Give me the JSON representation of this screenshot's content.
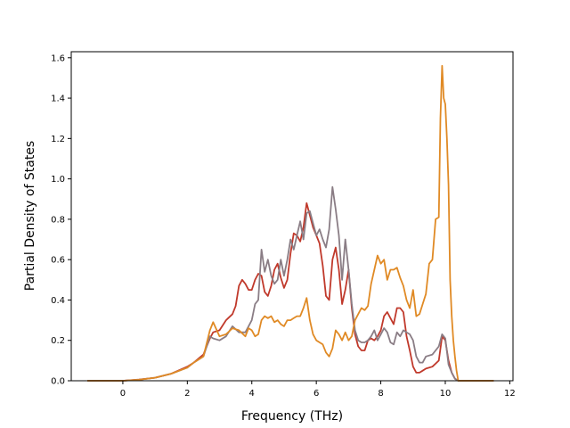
{
  "chart_data": {
    "type": "line",
    "title": "",
    "xlabel": "Frequency (THz)",
    "ylabel": "Partial Density of States",
    "xlim": [
      -1.6,
      12.1
    ],
    "ylim": [
      0.0,
      1.63
    ],
    "xticks": [
      0,
      2,
      4,
      6,
      8,
      10,
      12
    ],
    "yticks": [
      0.0,
      0.2,
      0.4,
      0.6,
      0.8,
      1.0,
      1.2,
      1.4,
      1.6
    ],
    "xtick_labels": [
      "0",
      "2",
      "4",
      "6",
      "8",
      "10",
      "12"
    ],
    "ytick_labels": [
      "0.0",
      "0.2",
      "0.4",
      "0.6",
      "0.8",
      "1.0",
      "1.2",
      "1.4",
      "1.6"
    ],
    "grid": false,
    "legend": "none",
    "series": [
      {
        "color": "#c0392b",
        "points": [
          [
            -1.1,
            0
          ],
          [
            0,
            0
          ],
          [
            0.5,
            0.006
          ],
          [
            1,
            0.015
          ],
          [
            1.5,
            0.035
          ],
          [
            2,
            0.07
          ],
          [
            2.2,
            0.09
          ],
          [
            2.5,
            0.13
          ],
          [
            2.7,
            0.21
          ],
          [
            2.8,
            0.24
          ],
          [
            3,
            0.25
          ],
          [
            3.2,
            0.3
          ],
          [
            3.4,
            0.33
          ],
          [
            3.5,
            0.37
          ],
          [
            3.6,
            0.47
          ],
          [
            3.7,
            0.5
          ],
          [
            3.8,
            0.48
          ],
          [
            3.9,
            0.45
          ],
          [
            4.0,
            0.45
          ],
          [
            4.1,
            0.5
          ],
          [
            4.2,
            0.53
          ],
          [
            4.3,
            0.52
          ],
          [
            4.4,
            0.44
          ],
          [
            4.5,
            0.42
          ],
          [
            4.6,
            0.47
          ],
          [
            4.7,
            0.55
          ],
          [
            4.8,
            0.58
          ],
          [
            4.9,
            0.51
          ],
          [
            5.0,
            0.46
          ],
          [
            5.1,
            0.5
          ],
          [
            5.2,
            0.63
          ],
          [
            5.3,
            0.73
          ],
          [
            5.4,
            0.72
          ],
          [
            5.5,
            0.69
          ],
          [
            5.6,
            0.76
          ],
          [
            5.7,
            0.88
          ],
          [
            5.8,
            0.82
          ],
          [
            5.9,
            0.76
          ],
          [
            6.0,
            0.72
          ],
          [
            6.1,
            0.68
          ],
          [
            6.2,
            0.57
          ],
          [
            6.3,
            0.42
          ],
          [
            6.4,
            0.4
          ],
          [
            6.5,
            0.6
          ],
          [
            6.6,
            0.66
          ],
          [
            6.7,
            0.55
          ],
          [
            6.8,
            0.38
          ],
          [
            6.9,
            0.45
          ],
          [
            7.0,
            0.55
          ],
          [
            7.1,
            0.36
          ],
          [
            7.2,
            0.23
          ],
          [
            7.3,
            0.17
          ],
          [
            7.4,
            0.15
          ],
          [
            7.5,
            0.15
          ],
          [
            7.6,
            0.2
          ],
          [
            7.7,
            0.21
          ],
          [
            7.8,
            0.2
          ],
          [
            7.9,
            0.22
          ],
          [
            8.0,
            0.25
          ],
          [
            8.1,
            0.32
          ],
          [
            8.2,
            0.34
          ],
          [
            8.3,
            0.31
          ],
          [
            8.4,
            0.28
          ],
          [
            8.5,
            0.36
          ],
          [
            8.6,
            0.36
          ],
          [
            8.7,
            0.34
          ],
          [
            8.8,
            0.22
          ],
          [
            8.9,
            0.15
          ],
          [
            9.0,
            0.07
          ],
          [
            9.1,
            0.04
          ],
          [
            9.2,
            0.04
          ],
          [
            9.3,
            0.05
          ],
          [
            9.4,
            0.06
          ],
          [
            9.6,
            0.07
          ],
          [
            9.8,
            0.1
          ],
          [
            9.9,
            0.22
          ],
          [
            10.0,
            0.2
          ],
          [
            10.1,
            0.1
          ],
          [
            10.2,
            0.04
          ],
          [
            10.3,
            0.01
          ],
          [
            10.4,
            0
          ],
          [
            11.5,
            0
          ]
        ]
      },
      {
        "color": "#8a7d85",
        "points": [
          [
            -1.1,
            0
          ],
          [
            0,
            0
          ],
          [
            0.5,
            0.005
          ],
          [
            1,
            0.015
          ],
          [
            1.5,
            0.035
          ],
          [
            2,
            0.065
          ],
          [
            2.2,
            0.09
          ],
          [
            2.5,
            0.12
          ],
          [
            2.7,
            0.22
          ],
          [
            2.8,
            0.21
          ],
          [
            3,
            0.2
          ],
          [
            3.2,
            0.22
          ],
          [
            3.4,
            0.27
          ],
          [
            3.6,
            0.24
          ],
          [
            3.8,
            0.24
          ],
          [
            3.9,
            0.27
          ],
          [
            4.0,
            0.3
          ],
          [
            4.1,
            0.38
          ],
          [
            4.2,
            0.4
          ],
          [
            4.3,
            0.65
          ],
          [
            4.4,
            0.54
          ],
          [
            4.5,
            0.6
          ],
          [
            4.6,
            0.52
          ],
          [
            4.7,
            0.48
          ],
          [
            4.8,
            0.5
          ],
          [
            4.9,
            0.6
          ],
          [
            5.0,
            0.52
          ],
          [
            5.1,
            0.6
          ],
          [
            5.2,
            0.7
          ],
          [
            5.3,
            0.65
          ],
          [
            5.4,
            0.72
          ],
          [
            5.5,
            0.79
          ],
          [
            5.6,
            0.7
          ],
          [
            5.7,
            0.83
          ],
          [
            5.8,
            0.84
          ],
          [
            5.9,
            0.78
          ],
          [
            6.0,
            0.72
          ],
          [
            6.1,
            0.75
          ],
          [
            6.2,
            0.7
          ],
          [
            6.3,
            0.66
          ],
          [
            6.4,
            0.75
          ],
          [
            6.5,
            0.96
          ],
          [
            6.6,
            0.85
          ],
          [
            6.7,
            0.72
          ],
          [
            6.8,
            0.5
          ],
          [
            6.9,
            0.7
          ],
          [
            7.0,
            0.55
          ],
          [
            7.1,
            0.38
          ],
          [
            7.2,
            0.25
          ],
          [
            7.3,
            0.2
          ],
          [
            7.4,
            0.19
          ],
          [
            7.5,
            0.19
          ],
          [
            7.6,
            0.2
          ],
          [
            7.7,
            0.22
          ],
          [
            7.8,
            0.25
          ],
          [
            7.9,
            0.2
          ],
          [
            8.0,
            0.23
          ],
          [
            8.1,
            0.26
          ],
          [
            8.2,
            0.24
          ],
          [
            8.3,
            0.19
          ],
          [
            8.4,
            0.18
          ],
          [
            8.5,
            0.24
          ],
          [
            8.6,
            0.22
          ],
          [
            8.7,
            0.25
          ],
          [
            8.8,
            0.24
          ],
          [
            8.9,
            0.23
          ],
          [
            9.0,
            0.2
          ],
          [
            9.1,
            0.12
          ],
          [
            9.2,
            0.09
          ],
          [
            9.3,
            0.09
          ],
          [
            9.4,
            0.12
          ],
          [
            9.6,
            0.13
          ],
          [
            9.8,
            0.17
          ],
          [
            9.9,
            0.23
          ],
          [
            10.0,
            0.21
          ],
          [
            10.1,
            0.08
          ],
          [
            10.2,
            0.04
          ],
          [
            10.3,
            0.01
          ],
          [
            10.4,
            0
          ],
          [
            11.5,
            0
          ]
        ]
      },
      {
        "color": "#e08a25",
        "points": [
          [
            -1.1,
            0
          ],
          [
            0,
            0
          ],
          [
            0.5,
            0.005
          ],
          [
            1,
            0.015
          ],
          [
            1.5,
            0.035
          ],
          [
            2,
            0.065
          ],
          [
            2.2,
            0.09
          ],
          [
            2.5,
            0.12
          ],
          [
            2.7,
            0.25
          ],
          [
            2.8,
            0.29
          ],
          [
            3,
            0.22
          ],
          [
            3.2,
            0.23
          ],
          [
            3.4,
            0.26
          ],
          [
            3.6,
            0.25
          ],
          [
            3.8,
            0.22
          ],
          [
            3.9,
            0.26
          ],
          [
            4.0,
            0.25
          ],
          [
            4.1,
            0.22
          ],
          [
            4.2,
            0.23
          ],
          [
            4.3,
            0.3
          ],
          [
            4.4,
            0.32
          ],
          [
            4.5,
            0.31
          ],
          [
            4.6,
            0.32
          ],
          [
            4.7,
            0.29
          ],
          [
            4.8,
            0.3
          ],
          [
            4.9,
            0.28
          ],
          [
            5.0,
            0.27
          ],
          [
            5.1,
            0.3
          ],
          [
            5.2,
            0.3
          ],
          [
            5.3,
            0.31
          ],
          [
            5.4,
            0.32
          ],
          [
            5.5,
            0.32
          ],
          [
            5.6,
            0.36
          ],
          [
            5.7,
            0.41
          ],
          [
            5.8,
            0.3
          ],
          [
            5.9,
            0.23
          ],
          [
            6.0,
            0.2
          ],
          [
            6.1,
            0.19
          ],
          [
            6.2,
            0.18
          ],
          [
            6.3,
            0.14
          ],
          [
            6.4,
            0.12
          ],
          [
            6.5,
            0.16
          ],
          [
            6.6,
            0.25
          ],
          [
            6.7,
            0.23
          ],
          [
            6.8,
            0.2
          ],
          [
            6.9,
            0.24
          ],
          [
            7.0,
            0.2
          ],
          [
            7.1,
            0.22
          ],
          [
            7.2,
            0.3
          ],
          [
            7.3,
            0.33
          ],
          [
            7.4,
            0.36
          ],
          [
            7.5,
            0.35
          ],
          [
            7.6,
            0.37
          ],
          [
            7.7,
            0.48
          ],
          [
            7.8,
            0.55
          ],
          [
            7.9,
            0.62
          ],
          [
            8.0,
            0.58
          ],
          [
            8.1,
            0.6
          ],
          [
            8.2,
            0.5
          ],
          [
            8.3,
            0.55
          ],
          [
            8.4,
            0.55
          ],
          [
            8.5,
            0.56
          ],
          [
            8.6,
            0.51
          ],
          [
            8.7,
            0.47
          ],
          [
            8.8,
            0.4
          ],
          [
            8.9,
            0.36
          ],
          [
            9.0,
            0.45
          ],
          [
            9.1,
            0.32
          ],
          [
            9.2,
            0.33
          ],
          [
            9.3,
            0.38
          ],
          [
            9.4,
            0.43
          ],
          [
            9.5,
            0.58
          ],
          [
            9.6,
            0.6
          ],
          [
            9.7,
            0.8
          ],
          [
            9.8,
            0.81
          ],
          [
            9.85,
            1.3
          ],
          [
            9.9,
            1.56
          ],
          [
            9.95,
            1.4
          ],
          [
            10.0,
            1.37
          ],
          [
            10.05,
            1.2
          ],
          [
            10.1,
            0.97
          ],
          [
            10.15,
            0.5
          ],
          [
            10.2,
            0.32
          ],
          [
            10.25,
            0.2
          ],
          [
            10.3,
            0.12
          ],
          [
            10.35,
            0.05
          ],
          [
            10.4,
            0
          ],
          [
            11.5,
            0
          ]
        ]
      }
    ]
  }
}
